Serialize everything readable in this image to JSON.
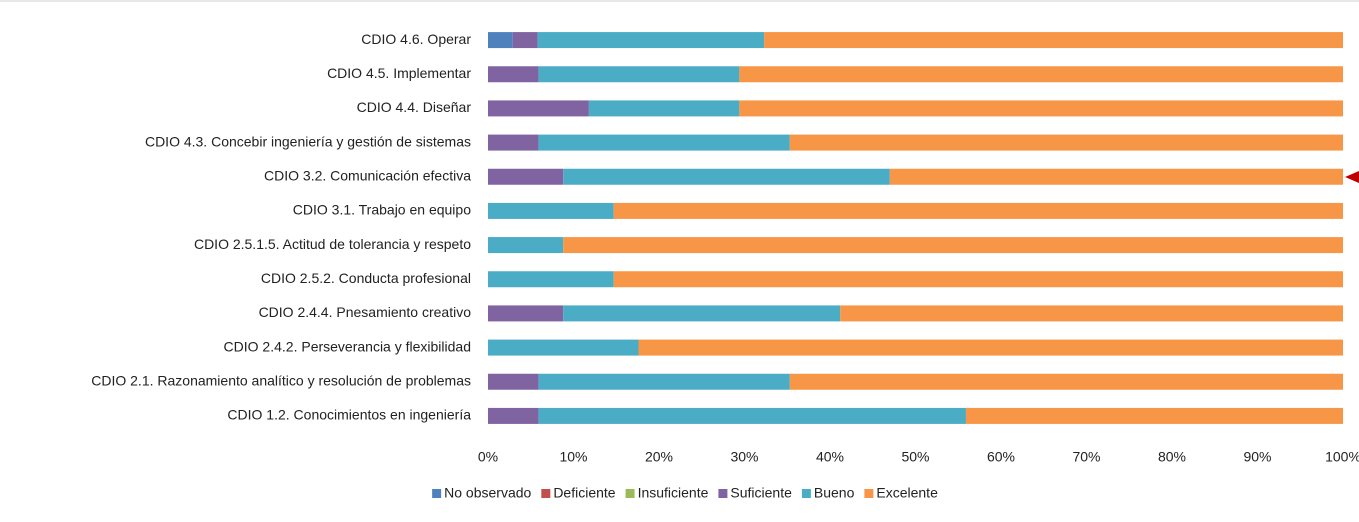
{
  "chart_data": {
    "type": "stacked_bar_horizontal",
    "categories": [
      "CDIO 4.6. Operar",
      "CDIO 4.5. Implementar",
      "CDIO 4.4. Diseñar",
      "CDIO 4.3. Concebir ingeniería y gestión de sistemas",
      "CDIO 3.2. Comunicación efectiva",
      "CDIO 3.1. Trabajo en equipo",
      "CDIO 2.5.1.5. Actitud de tolerancia y respeto",
      "CDIO 2.5.2. Conducta profesional",
      "CDIO 2.4.4. Pnesamiento creativo",
      "CDIO 2.4.2. Perseverancia y flexibilidad",
      "CDIO 2.1. Razonamiento analítico y resolución de problemas",
      "CDIO 1.2. Conocimientos en ingeniería"
    ],
    "series": [
      {
        "name": "No observado",
        "color": "#4f81bd",
        "values": [
          2.9,
          0,
          0,
          0,
          0,
          0,
          0,
          0,
          0,
          0,
          0,
          0
        ]
      },
      {
        "name": "Deficiente",
        "color": "#c0504d",
        "values": [
          0,
          0,
          0,
          0,
          0,
          0,
          0,
          0,
          0,
          0,
          0,
          0
        ]
      },
      {
        "name": "Insuficiente",
        "color": "#9bbb59",
        "values": [
          0,
          0,
          0,
          0,
          0,
          0,
          0,
          0,
          0,
          0,
          0,
          0
        ]
      },
      {
        "name": "Suficiente",
        "color": "#8064a2",
        "values": [
          2.9,
          5.9,
          11.8,
          5.9,
          8.8,
          0,
          0,
          0,
          8.8,
          0,
          5.9,
          5.9
        ]
      },
      {
        "name": "Bueno",
        "color": "#4bacc6",
        "values": [
          26.5,
          23.5,
          17.6,
          29.4,
          38.2,
          14.7,
          8.8,
          14.7,
          32.4,
          17.6,
          29.4,
          50.0
        ]
      },
      {
        "name": "Excelente",
        "color": "#f79646",
        "values": [
          67.7,
          70.6,
          70.6,
          64.7,
          53.0,
          85.3,
          91.2,
          85.3,
          58.8,
          82.4,
          64.7,
          44.1
        ]
      }
    ],
    "xlim": [
      0,
      100
    ],
    "xticks": [
      {
        "value": 0,
        "label": "0%"
      },
      {
        "value": 10,
        "label": "10%"
      },
      {
        "value": 20,
        "label": "20%"
      },
      {
        "value": 30,
        "label": "30%"
      },
      {
        "value": 40,
        "label": "40%"
      },
      {
        "value": 50,
        "label": "50%"
      },
      {
        "value": 60,
        "label": "60%"
      },
      {
        "value": 70,
        "label": "70%"
      },
      {
        "value": 80,
        "label": "80%"
      },
      {
        "value": 90,
        "label": "90%"
      },
      {
        "value": 100,
        "label": "100%"
      }
    ],
    "grid": false,
    "legend": "bottom"
  }
}
